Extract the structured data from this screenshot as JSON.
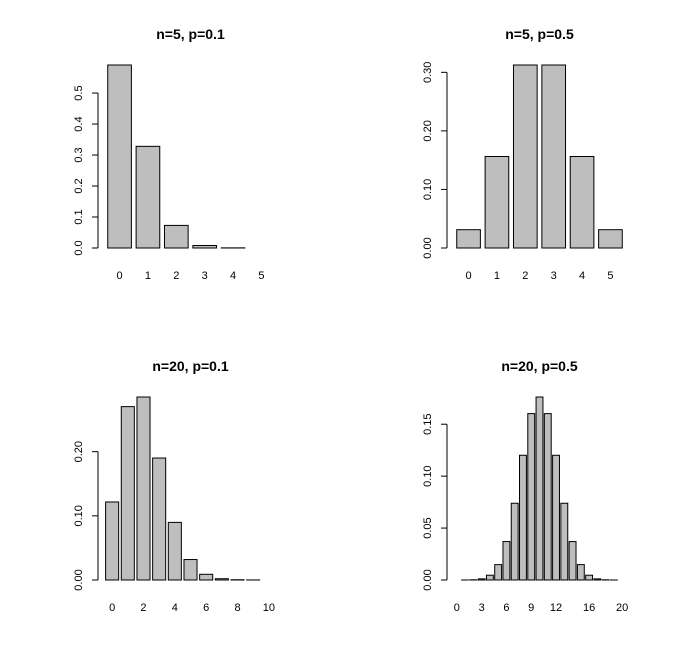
{
  "chart_data": [
    {
      "type": "bar",
      "title": "n=5, p=0.1",
      "categories": [
        "0",
        "1",
        "2",
        "3",
        "4",
        "5"
      ],
      "values": [
        0.59049,
        0.32805,
        0.0729,
        0.0081,
        0.00045,
        1e-05
      ],
      "ylim": [
        0,
        0.5905
      ],
      "yticks": [
        0.0,
        0.1,
        0.2,
        0.3,
        0.4,
        0.5
      ],
      "ytick_labels": [
        "0.0",
        "0.1",
        "0.2",
        "0.3",
        "0.4",
        "0.5"
      ],
      "xtick_labels": [
        "0",
        "1",
        "2",
        "3",
        "4",
        "5"
      ],
      "xlabel": "",
      "ylabel": "",
      "grid": false,
      "bar_color": "#bebebe"
    },
    {
      "type": "bar",
      "title": "n=5, p=0.5",
      "categories": [
        "0",
        "1",
        "2",
        "3",
        "4",
        "5"
      ],
      "values": [
        0.03125,
        0.15625,
        0.3125,
        0.3125,
        0.15625,
        0.03125
      ],
      "ylim": [
        0,
        0.3125
      ],
      "yticks": [
        0.0,
        0.1,
        0.2,
        0.3
      ],
      "ytick_labels": [
        "0.00",
        "0.10",
        "0.20",
        "0.30"
      ],
      "xtick_labels": [
        "0",
        "1",
        "2",
        "3",
        "4",
        "5"
      ],
      "xlabel": "",
      "ylabel": "",
      "grid": false,
      "bar_color": "#bebebe"
    },
    {
      "type": "bar",
      "title": "n=20, p=0.1",
      "categories": [
        "0",
        "1",
        "2",
        "3",
        "4",
        "5",
        "6",
        "7",
        "8",
        "9",
        "10"
      ],
      "values": [
        0.1216,
        0.2702,
        0.2852,
        0.1901,
        0.0898,
        0.0319,
        0.0089,
        0.002,
        0.0004,
        0.0001,
        0.0
      ],
      "ylim": [
        0,
        0.2852
      ],
      "yticks": [
        0.0,
        0.1,
        0.2
      ],
      "ytick_labels": [
        "0.00",
        "0.10",
        "0.20"
      ],
      "xtick_labels": [
        "0",
        "2",
        "4",
        "6",
        "8",
        "10"
      ],
      "xtick_positions": [
        0,
        2,
        4,
        6,
        8,
        10
      ],
      "xlabel": "",
      "ylabel": "",
      "grid": false,
      "bar_color": "#bebebe"
    },
    {
      "type": "bar",
      "title": "n=20, p=0.5",
      "categories": [
        "0",
        "1",
        "2",
        "3",
        "4",
        "5",
        "6",
        "7",
        "8",
        "9",
        "10",
        "11",
        "12",
        "13",
        "14",
        "15",
        "16",
        "17",
        "18",
        "19",
        "20"
      ],
      "values": [
        1e-06,
        2e-05,
        0.0002,
        0.0011,
        0.0046,
        0.0148,
        0.037,
        0.0739,
        0.1201,
        0.1602,
        0.1762,
        0.1602,
        0.1201,
        0.0739,
        0.037,
        0.0148,
        0.0046,
        0.0011,
        0.0002,
        2e-05,
        1e-06
      ],
      "ylim": [
        0,
        0.1762
      ],
      "yticks": [
        0.0,
        0.05,
        0.1,
        0.15
      ],
      "ytick_labels": [
        "0.00",
        "0.05",
        "0.10",
        "0.15"
      ],
      "xtick_labels": [
        "0",
        "3",
        "6",
        "9",
        "12",
        "16",
        "20"
      ],
      "xtick_positions": [
        0,
        3,
        6,
        9,
        12,
        16,
        20
      ],
      "xlabel": "",
      "ylabel": "",
      "grid": false,
      "bar_color": "#bebebe"
    }
  ]
}
